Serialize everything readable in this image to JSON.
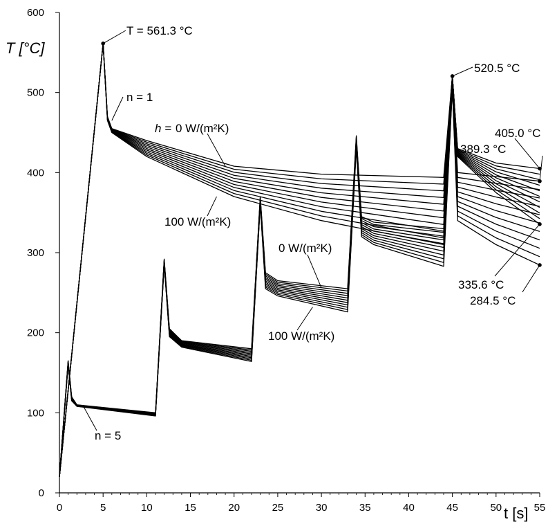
{
  "chart_data": {
    "type": "line",
    "title": "",
    "xlabel": "t [s]",
    "ylabel": "T [°C]",
    "xlim": [
      0,
      55
    ],
    "ylim": [
      0,
      600
    ],
    "xticks": [
      0,
      5,
      10,
      15,
      20,
      25,
      30,
      35,
      40,
      45,
      50,
      55
    ],
    "yticks": [
      0,
      100,
      200,
      300,
      400,
      500,
      600
    ],
    "grid": false,
    "legend": "none",
    "line_color": "#000000",
    "h_range": {
      "min": 0,
      "max": 100,
      "curves": 11
    },
    "series_groups": [
      {
        "n": 1,
        "h0_curve": [
          [
            0,
            20
          ],
          [
            5,
            561.3
          ],
          [
            5.5,
            470
          ],
          [
            6,
            455
          ],
          [
            10,
            440
          ],
          [
            20,
            408
          ],
          [
            30,
            398
          ],
          [
            44,
            394
          ],
          [
            45,
            520.5
          ],
          [
            45.6,
            430
          ],
          [
            50,
            412
          ],
          [
            55,
            405.0
          ]
        ],
        "h100_curve": [
          [
            0,
            20
          ],
          [
            5,
            561.3
          ],
          [
            5.5,
            465
          ],
          [
            6,
            450
          ],
          [
            10,
            420
          ],
          [
            20,
            370
          ],
          [
            30,
            340
          ],
          [
            44,
            310
          ],
          [
            45,
            520.5
          ],
          [
            45.6,
            420
          ],
          [
            50,
            375
          ],
          [
            55,
            335.6
          ]
        ]
      },
      {
        "n": 5,
        "h0_curve": [
          [
            0,
            20
          ],
          [
            1,
            165
          ],
          [
            1.4,
            120
          ],
          [
            2,
            110
          ],
          [
            11,
            100
          ],
          [
            11,
            100
          ],
          [
            12,
            292
          ],
          [
            12.6,
            205
          ],
          [
            14,
            190
          ],
          [
            22,
            180
          ],
          [
            22,
            180
          ],
          [
            23,
            370
          ],
          [
            23.6,
            275
          ],
          [
            25,
            265
          ],
          [
            33,
            255
          ],
          [
            33,
            255
          ],
          [
            34,
            446
          ],
          [
            34.6,
            345
          ],
          [
            36,
            338
          ],
          [
            44,
            330
          ],
          [
            44,
            330
          ],
          [
            45,
            520.5
          ],
          [
            45.6,
            400
          ],
          [
            50,
            395
          ],
          [
            55,
            389.3
          ]
        ],
        "h100_curve": [
          [
            0,
            20
          ],
          [
            1,
            160
          ],
          [
            1.4,
            115
          ],
          [
            2,
            108
          ],
          [
            11,
            96
          ],
          [
            11,
            96
          ],
          [
            12,
            285
          ],
          [
            12.6,
            195
          ],
          [
            14,
            182
          ],
          [
            22,
            164
          ],
          [
            22,
            164
          ],
          [
            23,
            360
          ],
          [
            23.6,
            255
          ],
          [
            25,
            246
          ],
          [
            33,
            226
          ],
          [
            33,
            226
          ],
          [
            34,
            430
          ],
          [
            34.6,
            320
          ],
          [
            36,
            310
          ],
          [
            44,
            283
          ],
          [
            44,
            283
          ],
          [
            45,
            505
          ],
          [
            45.6,
            340
          ],
          [
            50,
            310
          ],
          [
            55,
            284.5
          ]
        ]
      }
    ],
    "annotations": {
      "peak1": "T = 561.3 °C",
      "peak2": "520.5 °C",
      "n1": "n = 1",
      "n5": "n = 5",
      "h0_n1": "0 W/(m²K)",
      "h0_prefix": "h = ",
      "h100_n1": "100 W/(m²K)",
      "h0_n5": "0 W/(m²K)",
      "h100_n5": "100 W/(m²K)",
      "end1": "405.0 °C",
      "end2": "389.3 °C",
      "end3": "335.6 °C",
      "end4": "284.5 °C"
    }
  }
}
